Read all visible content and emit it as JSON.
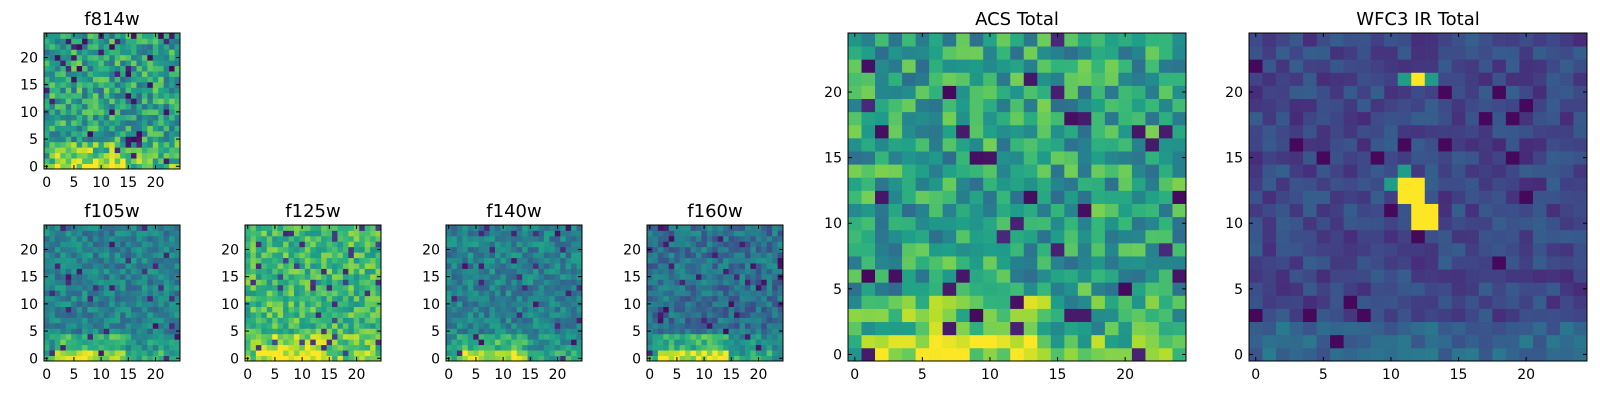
{
  "figure": {
    "background": "#ffffff",
    "colormap": "viridis"
  },
  "chart_data": [
    {
      "type": "heatmap",
      "title": "f814w",
      "grid": [
        25,
        25
      ],
      "xlim": [
        -0.5,
        24.5
      ],
      "ylim": [
        -0.5,
        24.5
      ],
      "xticks": [
        0,
        5,
        10,
        15,
        20
      ],
      "yticks": [
        0,
        5,
        10,
        15,
        20
      ],
      "xtick_labels": [
        "0",
        "5",
        "10",
        "15",
        "20"
      ],
      "ytick_labels": [
        "0",
        "5",
        "10",
        "15",
        "20"
      ],
      "pattern": "noise-bright-bottom"
    },
    {
      "type": "heatmap",
      "title": "f105w",
      "grid": [
        25,
        25
      ],
      "xlim": [
        -0.5,
        24.5
      ],
      "ylim": [
        -0.5,
        24.5
      ],
      "xticks": [
        0,
        5,
        10,
        15,
        20
      ],
      "yticks": [
        0,
        5,
        10,
        15,
        20
      ],
      "xtick_labels": [
        "0",
        "5",
        "10",
        "15",
        "20"
      ],
      "ytick_labels": [
        "0",
        "5",
        "10",
        "15",
        "20"
      ],
      "pattern": "smooth-bright-bottom"
    },
    {
      "type": "heatmap",
      "title": "f125w",
      "grid": [
        25,
        25
      ],
      "xlim": [
        -0.5,
        24.5
      ],
      "ylim": [
        -0.5,
        24.5
      ],
      "xticks": [
        0,
        5,
        10,
        15,
        20
      ],
      "yticks": [
        0,
        5,
        10,
        15,
        20
      ],
      "xtick_labels": [
        "0",
        "5",
        "10",
        "15",
        "20"
      ],
      "ytick_labels": [
        "0",
        "5",
        "10",
        "15",
        "20"
      ],
      "pattern": "smooth-bright"
    },
    {
      "type": "heatmap",
      "title": "f140w",
      "grid": [
        25,
        25
      ],
      "xlim": [
        -0.5,
        24.5
      ],
      "ylim": [
        -0.5,
        24.5
      ],
      "xticks": [
        0,
        5,
        10,
        15,
        20
      ],
      "yticks": [
        0,
        5,
        10,
        15,
        20
      ],
      "xtick_labels": [
        "0",
        "5",
        "10",
        "15",
        "20"
      ],
      "ytick_labels": [
        "0",
        "5",
        "10",
        "15",
        "20"
      ],
      "pattern": "smooth-bright-bottom"
    },
    {
      "type": "heatmap",
      "title": "f160w",
      "grid": [
        25,
        25
      ],
      "xlim": [
        -0.5,
        24.5
      ],
      "ylim": [
        -0.5,
        24.5
      ],
      "xticks": [
        0,
        5,
        10,
        15,
        20
      ],
      "yticks": [
        0,
        5,
        10,
        15,
        20
      ],
      "xtick_labels": [
        "0",
        "5",
        "10",
        "15",
        "20"
      ],
      "ytick_labels": [
        "0",
        "5",
        "10",
        "15",
        "20"
      ],
      "pattern": "smooth-dark-bottom"
    },
    {
      "type": "heatmap",
      "title": "ACS Total",
      "grid": [
        25,
        25
      ],
      "xlim": [
        -0.5,
        24.5
      ],
      "ylim": [
        -0.5,
        24.5
      ],
      "xticks": [
        0,
        5,
        10,
        15,
        20
      ],
      "yticks": [
        0,
        5,
        10,
        15,
        20
      ],
      "xtick_labels": [
        "0",
        "5",
        "10",
        "15",
        "20"
      ],
      "ytick_labels": [
        "0",
        "5",
        "10",
        "15",
        "20"
      ],
      "pattern": "noise-bright-bottom"
    },
    {
      "type": "heatmap",
      "title": "WFC3 IR Total",
      "grid": [
        25,
        25
      ],
      "xlim": [
        -0.5,
        24.5
      ],
      "ylim": [
        -0.5,
        24.5
      ],
      "xticks": [
        0,
        5,
        10,
        15,
        20
      ],
      "yticks": [
        0,
        5,
        10,
        15,
        20
      ],
      "xtick_labels": [
        "0",
        "5",
        "10",
        "15",
        "20"
      ],
      "ytick_labels": [
        "0",
        "5",
        "10",
        "15",
        "20"
      ],
      "pattern": "dark-with-source",
      "bright_pixels": [
        [
          11,
          13
        ],
        [
          12,
          13
        ],
        [
          11,
          12
        ],
        [
          12,
          12
        ],
        [
          12,
          11
        ],
        [
          13,
          11
        ],
        [
          12,
          10
        ],
        [
          13,
          10
        ],
        [
          12,
          21
        ]
      ]
    }
  ]
}
